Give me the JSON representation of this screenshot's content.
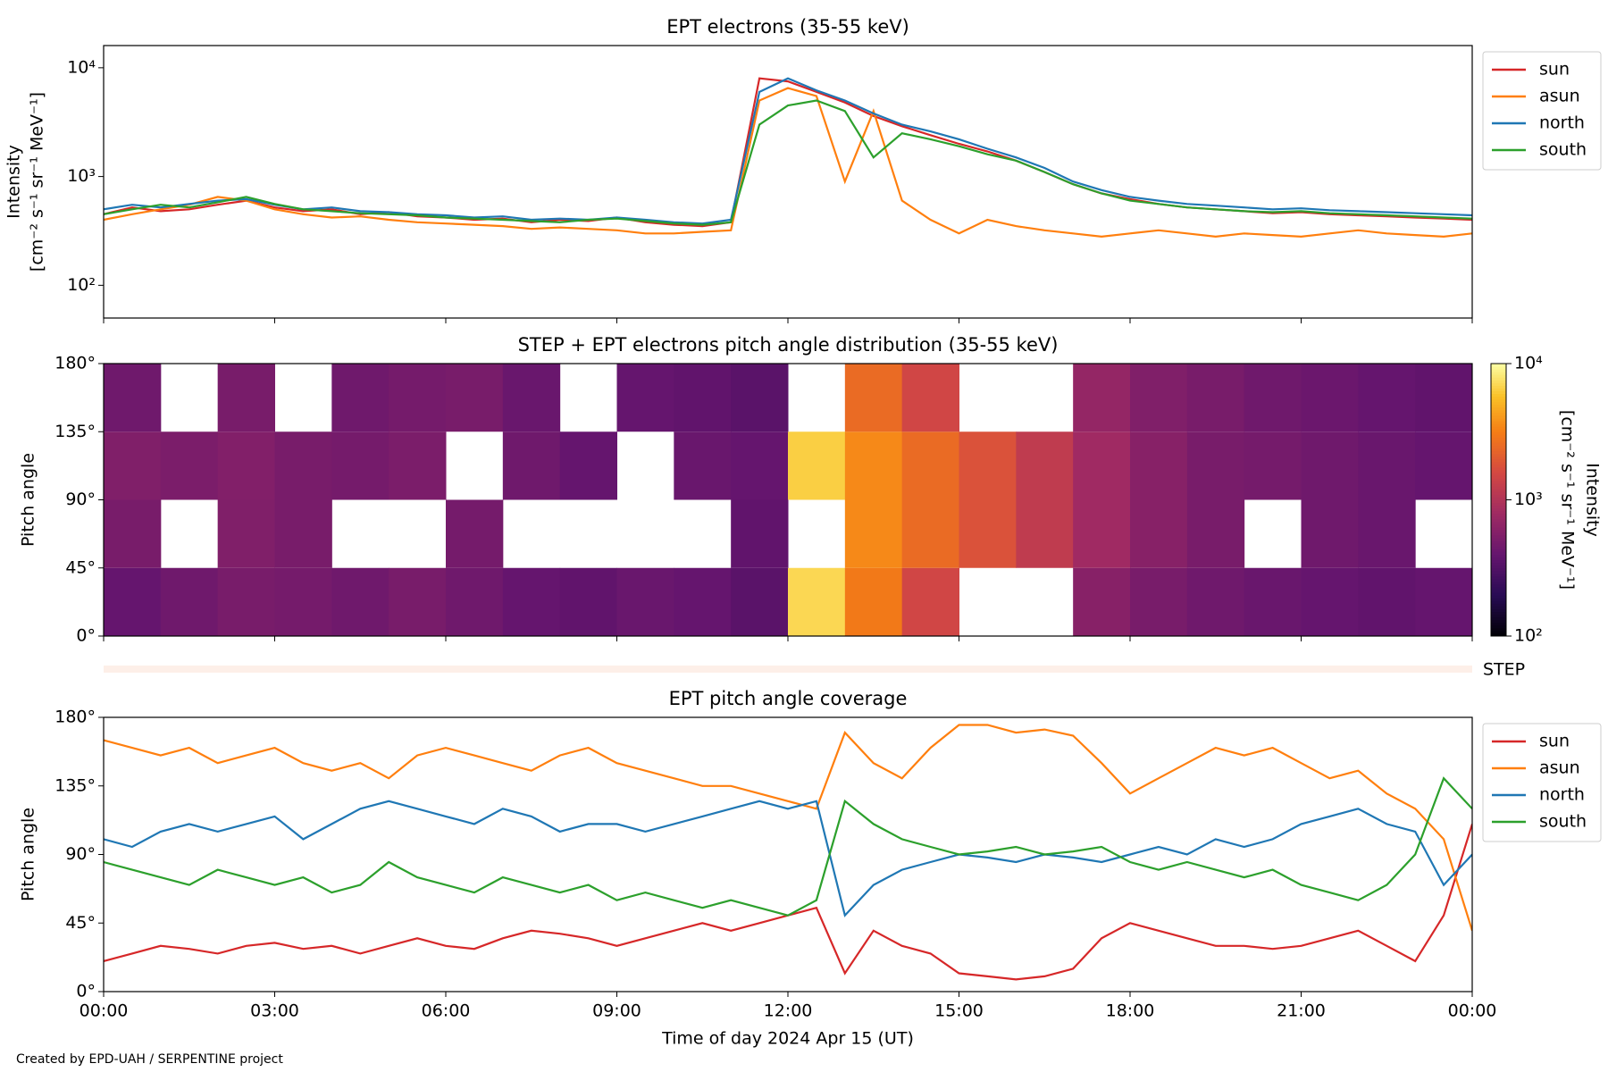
{
  "chart_data": [
    {
      "type": "line",
      "title": "EPT electrons (35-55 keV)",
      "ylabel": [
        "Intensity",
        "[cm⁻² s⁻¹ sr⁻¹ MeV⁻¹]"
      ],
      "log": true,
      "ylim": [
        50,
        16000
      ],
      "yticks": [
        {
          "value": 100,
          "label": "10²"
        },
        {
          "value": 1000,
          "label": "10³"
        },
        {
          "value": 10000,
          "label": "10⁴"
        }
      ],
      "xlim": [
        0,
        24
      ],
      "xticks": [
        0,
        3,
        6,
        9,
        12,
        15,
        18,
        21,
        24
      ],
      "legend": "outside right",
      "x": [
        0,
        0.5,
        1,
        1.5,
        2,
        2.5,
        3,
        3.5,
        4,
        4.5,
        5,
        5.5,
        6,
        6.5,
        7,
        7.5,
        8,
        8.5,
        9,
        9.5,
        10,
        10.5,
        11,
        11.5,
        12,
        12.5,
        13,
        13.5,
        14,
        14.5,
        15,
        15.5,
        16,
        16.5,
        17,
        17.5,
        18,
        18.5,
        19,
        19.5,
        20,
        20.5,
        21,
        21.5,
        22,
        22.5,
        23,
        23.5,
        24
      ],
      "series": [
        {
          "name": "sun",
          "color": "#d62728",
          "values": [
            450,
            520,
            480,
            500,
            550,
            600,
            520,
            480,
            500,
            450,
            470,
            430,
            420,
            400,
            410,
            380,
            400,
            390,
            420,
            380,
            360,
            350,
            380,
            8000,
            7500,
            6000,
            4800,
            3600,
            2900,
            2400,
            2000,
            1700,
            1400,
            1100,
            850,
            700,
            620,
            560,
            520,
            500,
            480,
            460,
            470,
            450,
            440,
            430,
            420,
            410,
            400
          ]
        },
        {
          "name": "asun",
          "color": "#ff7f0e",
          "values": [
            400,
            450,
            500,
            550,
            650,
            600,
            500,
            450,
            420,
            430,
            400,
            380,
            370,
            360,
            350,
            330,
            340,
            330,
            320,
            300,
            300,
            310,
            320,
            5000,
            6500,
            5500,
            900,
            4000,
            600,
            400,
            300,
            400,
            350,
            320,
            300,
            280,
            300,
            320,
            300,
            280,
            300,
            290,
            280,
            300,
            320,
            300,
            290,
            280,
            300
          ]
        },
        {
          "name": "north",
          "color": "#1f77b4",
          "values": [
            500,
            550,
            520,
            560,
            600,
            620,
            550,
            500,
            520,
            480,
            470,
            450,
            440,
            420,
            430,
            400,
            410,
            400,
            420,
            400,
            380,
            370,
            400,
            6000,
            8000,
            6200,
            5000,
            3800,
            3000,
            2600,
            2200,
            1800,
            1500,
            1200,
            900,
            750,
            650,
            600,
            560,
            540,
            520,
            500,
            510,
            490,
            480,
            470,
            460,
            450,
            440
          ]
        },
        {
          "name": "south",
          "color": "#2ca02c",
          "values": [
            450,
            500,
            550,
            520,
            580,
            650,
            560,
            500,
            480,
            460,
            450,
            440,
            420,
            410,
            400,
            390,
            380,
            400,
            410,
            390,
            370,
            360,
            380,
            3000,
            4500,
            5000,
            4000,
            1500,
            2500,
            2200,
            1900,
            1600,
            1400,
            1100,
            850,
            700,
            600,
            560,
            520,
            500,
            480,
            470,
            480,
            460,
            450,
            440,
            430,
            420,
            410
          ]
        }
      ]
    },
    {
      "type": "heatmap",
      "title": "STEP + EPT electrons pitch angle distribution (35-55 keV)",
      "ylabel": "Pitch angle",
      "ylim": [
        0,
        180
      ],
      "yticks": [
        {
          "value": 0,
          "label": "0°"
        },
        {
          "value": 45,
          "label": "45°"
        },
        {
          "value": 90,
          "label": "90°"
        },
        {
          "value": 135,
          "label": "135°"
        },
        {
          "value": 180,
          "label": "180°"
        }
      ],
      "xlim": [
        0,
        24
      ],
      "xticks": [
        0,
        3,
        6,
        9,
        12,
        15,
        18,
        21,
        24
      ],
      "xbins": [
        0,
        1,
        2,
        3,
        4,
        5,
        6,
        7,
        8,
        9,
        10,
        11,
        12,
        13,
        14,
        15,
        16,
        17,
        18,
        19,
        20,
        21,
        22,
        23,
        24
      ],
      "ybins": [
        0,
        45,
        90,
        135,
        180
      ],
      "values": [
        [
          400,
          450,
          500,
          480,
          450,
          500,
          450,
          400,
          380,
          420,
          400,
          350,
          7000,
          3000,
          1500,
          null,
          null,
          600,
          500,
          450,
          420,
          400,
          380,
          400
        ],
        [
          500,
          null,
          550,
          500,
          null,
          null,
          480,
          null,
          null,
          null,
          null,
          380,
          null,
          3500,
          2500,
          1800,
          1200,
          800,
          600,
          500,
          null,
          450,
          420,
          null
        ],
        [
          550,
          520,
          560,
          500,
          480,
          520,
          null,
          450,
          400,
          null,
          420,
          400,
          6500,
          3500,
          2500,
          1800,
          1200,
          800,
          600,
          500,
          480,
          450,
          420,
          400
        ],
        [
          450,
          null,
          500,
          null,
          450,
          480,
          500,
          420,
          null,
          400,
          380,
          350,
          null,
          2500,
          1500,
          null,
          null,
          700,
          550,
          500,
          450,
          430,
          400,
          380
        ]
      ],
      "colormap": "inferno",
      "clog": true,
      "clim": [
        100,
        10000
      ],
      "cticks": [
        {
          "value": 100,
          "label": "10²"
        },
        {
          "value": 1000,
          "label": "10³"
        },
        {
          "value": 10000,
          "label": "10⁴"
        }
      ],
      "clabel": [
        "Intensity",
        "[cm⁻² s⁻¹ sr⁻¹ MeV⁻¹]"
      ],
      "annotation": "STEP"
    },
    {
      "type": "line",
      "title": "EPT pitch angle coverage",
      "ylabel": "Pitch angle",
      "xlabel": "Time of day 2024 Apr 15 (UT)",
      "ylim": [
        0,
        180
      ],
      "yticks": [
        {
          "value": 0,
          "label": "0°"
        },
        {
          "value": 45,
          "label": "45°"
        },
        {
          "value": 90,
          "label": "90°"
        },
        {
          "value": 135,
          "label": "135°"
        },
        {
          "value": 180,
          "label": "180°"
        }
      ],
      "xlim": [
        0,
        24
      ],
      "xticks": [
        {
          "value": 0,
          "label": "00:00"
        },
        {
          "value": 3,
          "label": "03:00"
        },
        {
          "value": 6,
          "label": "06:00"
        },
        {
          "value": 9,
          "label": "09:00"
        },
        {
          "value": 12,
          "label": "12:00"
        },
        {
          "value": 15,
          "label": "15:00"
        },
        {
          "value": 18,
          "label": "18:00"
        },
        {
          "value": 21,
          "label": "21:00"
        },
        {
          "value": 24,
          "label": "00:00"
        }
      ],
      "legend": "outside right",
      "x": [
        0,
        0.5,
        1,
        1.5,
        2,
        2.5,
        3,
        3.5,
        4,
        4.5,
        5,
        5.5,
        6,
        6.5,
        7,
        7.5,
        8,
        8.5,
        9,
        9.5,
        10,
        10.5,
        11,
        11.5,
        12,
        12.5,
        13,
        13.5,
        14,
        14.5,
        15,
        15.5,
        16,
        16.5,
        17,
        17.5,
        18,
        18.5,
        19,
        19.5,
        20,
        20.5,
        21,
        21.5,
        22,
        22.5,
        23,
        23.5,
        24
      ],
      "series": [
        {
          "name": "sun",
          "color": "#d62728",
          "values": [
            20,
            25,
            30,
            28,
            25,
            30,
            32,
            28,
            30,
            25,
            30,
            35,
            30,
            28,
            35,
            40,
            38,
            35,
            30,
            35,
            40,
            45,
            40,
            45,
            50,
            55,
            12,
            40,
            30,
            25,
            12,
            10,
            8,
            10,
            15,
            35,
            45,
            40,
            35,
            30,
            30,
            28,
            30,
            35,
            40,
            30,
            20,
            50,
            110
          ]
        },
        {
          "name": "asun",
          "color": "#ff7f0e",
          "values": [
            165,
            160,
            155,
            160,
            150,
            155,
            160,
            150,
            145,
            150,
            140,
            155,
            160,
            155,
            150,
            145,
            155,
            160,
            150,
            145,
            140,
            135,
            135,
            130,
            125,
            120,
            170,
            150,
            140,
            160,
            175,
            175,
            170,
            172,
            168,
            150,
            130,
            140,
            150,
            160,
            155,
            160,
            150,
            140,
            145,
            130,
            120,
            100,
            40
          ]
        },
        {
          "name": "north",
          "color": "#1f77b4",
          "values": [
            100,
            95,
            105,
            110,
            105,
            110,
            115,
            100,
            110,
            120,
            125,
            120,
            115,
            110,
            120,
            115,
            105,
            110,
            110,
            105,
            110,
            115,
            120,
            125,
            120,
            125,
            50,
            70,
            80,
            85,
            90,
            88,
            85,
            90,
            88,
            85,
            90,
            95,
            90,
            100,
            95,
            100,
            110,
            115,
            120,
            110,
            105,
            70,
            90
          ]
        },
        {
          "name": "south",
          "color": "#2ca02c",
          "values": [
            85,
            80,
            75,
            70,
            80,
            75,
            70,
            75,
            65,
            70,
            85,
            75,
            70,
            65,
            75,
            70,
            65,
            70,
            60,
            65,
            60,
            55,
            60,
            55,
            50,
            60,
            125,
            110,
            100,
            95,
            90,
            92,
            95,
            90,
            92,
            95,
            85,
            80,
            85,
            80,
            75,
            80,
            70,
            65,
            60,
            70,
            90,
            140,
            120
          ]
        }
      ]
    }
  ],
  "footer": "Created by EPD-UAH / SERPENTINE project"
}
